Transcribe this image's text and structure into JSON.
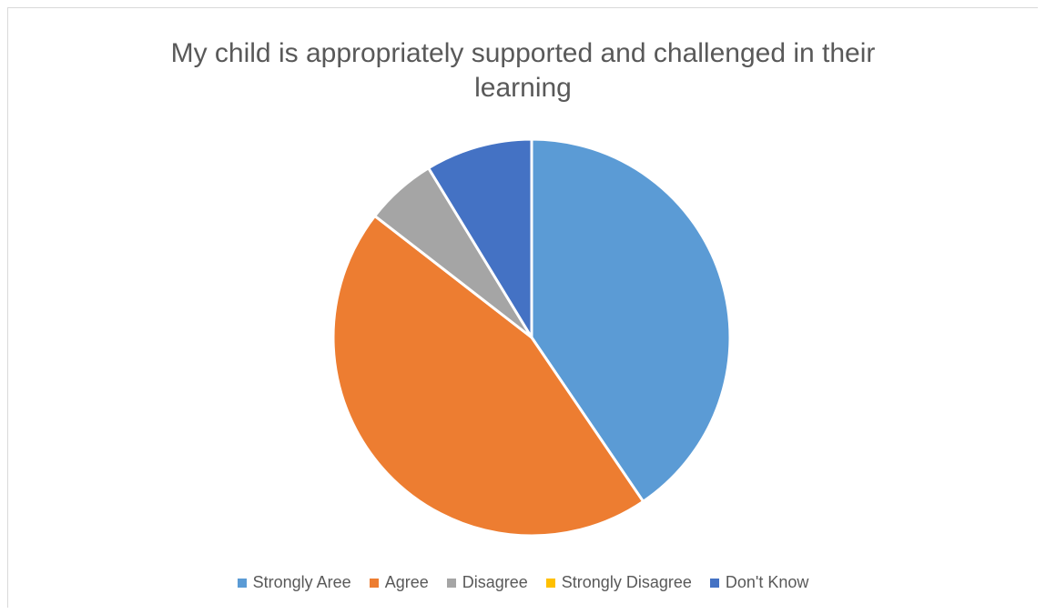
{
  "chart_data": {
    "type": "pie",
    "title_lines": [
      "My child is appropriately supported and challenged in their",
      "learning"
    ],
    "categories": [
      "Strongly Aree",
      "Agree",
      "Disagree",
      "Strongly Disagree",
      "Don't Know"
    ],
    "values": [
      40.5,
      45.0,
      5.8,
      0.0,
      8.7
    ],
    "colors": [
      "#5B9BD5",
      "#ED7D31",
      "#A5A5A5",
      "#FFC000",
      "#4472C4"
    ],
    "start_angle_deg": 0,
    "direction": "clockwise",
    "legend_position": "bottom"
  }
}
